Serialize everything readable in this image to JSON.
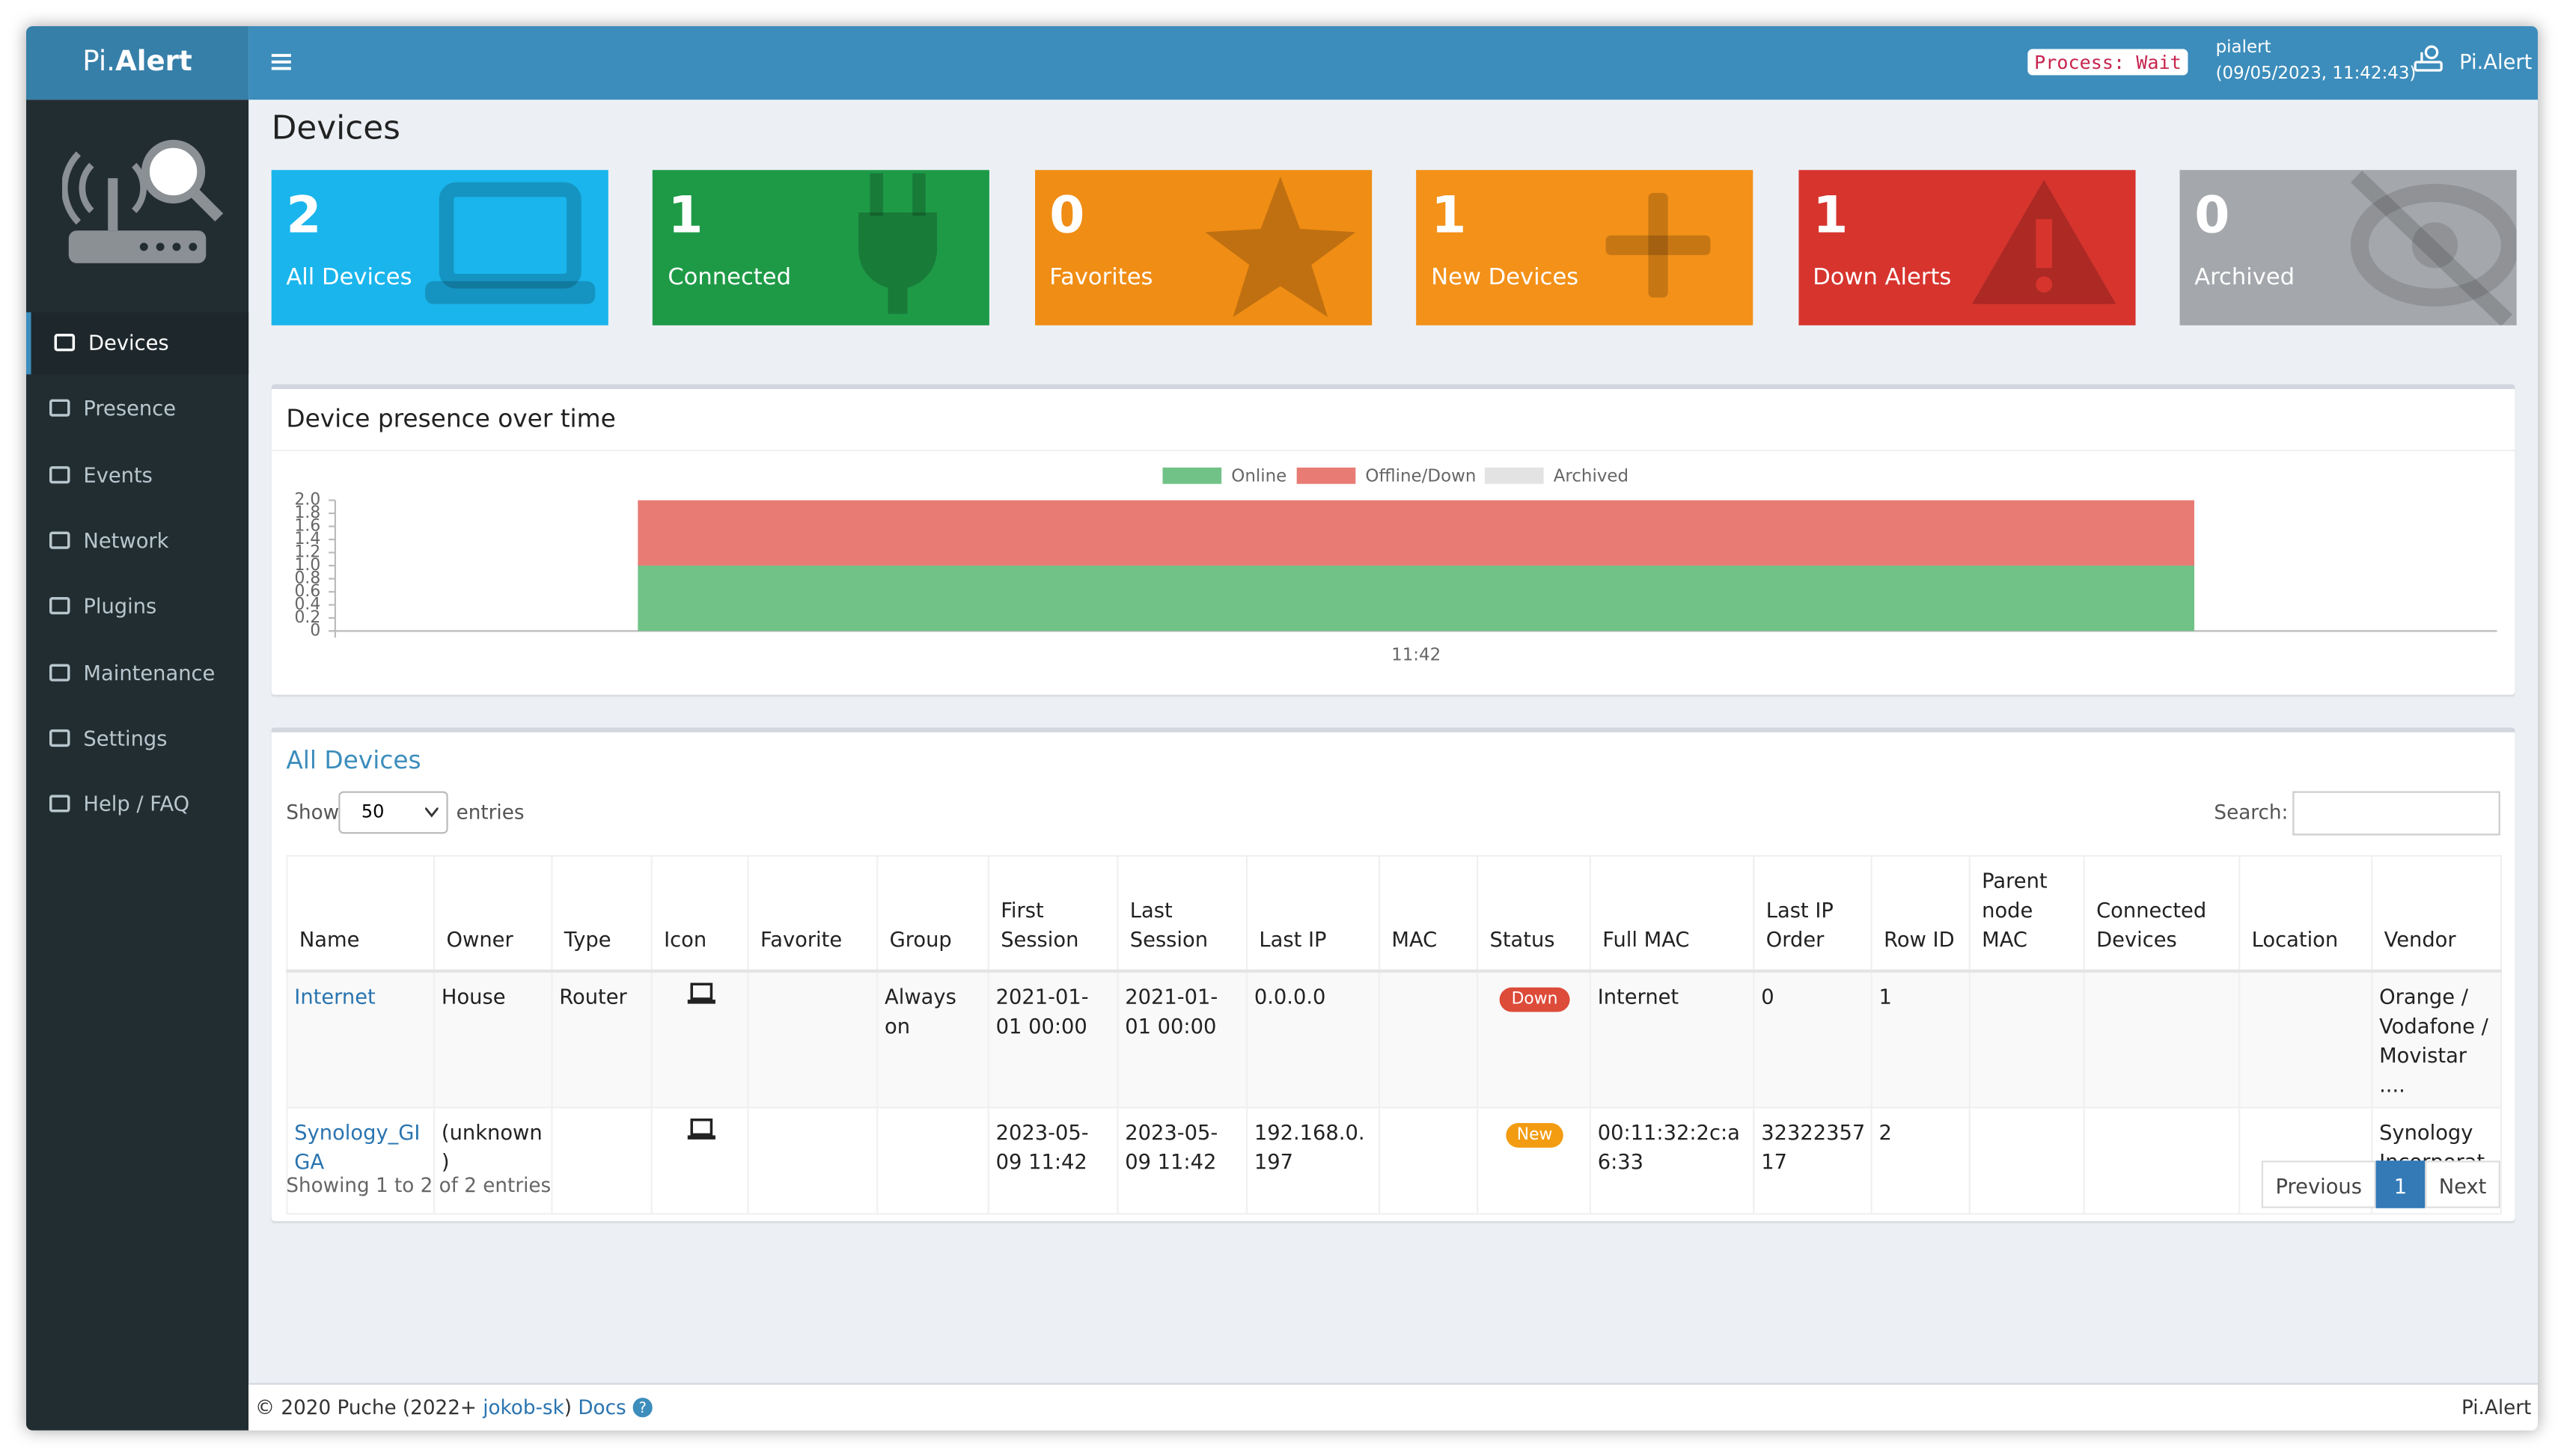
{
  "header": {
    "logo_plain": "Pi.",
    "logo_bold": "Alert",
    "process": "Process: Wait",
    "user": "pialert",
    "datetime": "(09/05/2023, 11:42:43)",
    "app": "Pi.Alert"
  },
  "sidebar": [
    "Devices",
    "Presence",
    "Events",
    "Network",
    "Plugins",
    "Maintenance",
    "Settings",
    "Help / FAQ"
  ],
  "page_title": "Devices",
  "tiles": [
    {
      "value": 2,
      "label": "All Devices",
      "color": "#1ab5ec"
    },
    {
      "value": 1,
      "label": "Connected",
      "color": "#1e9a47"
    },
    {
      "value": 0,
      "label": "Favorites",
      "color": "#f08d14"
    },
    {
      "value": 1,
      "label": "New Devices",
      "color": "#f39119"
    },
    {
      "value": 1,
      "label": "Down Alerts",
      "color": "#d7342e"
    },
    {
      "value": 0,
      "label": "Archived",
      "color": "#a4a7ab"
    }
  ],
  "chart_data": {
    "type": "bar",
    "stacked": true,
    "title": "Device presence over time",
    "categories": [
      "11:42"
    ],
    "series": [
      {
        "name": "Online",
        "color": "#71c287",
        "values": [
          1
        ]
      },
      {
        "name": "Offline/Down",
        "color": "#e87c75",
        "values": [
          1
        ]
      },
      {
        "name": "Archived",
        "color": "#e3e3e3",
        "values": [
          0
        ]
      }
    ],
    "ylim": [
      0,
      2
    ],
    "yticks": [
      0,
      0.2,
      0.4,
      0.6,
      0.8,
      {
        "value": 1,
        "label": "1.0"
      },
      1.2,
      1.4,
      1.6,
      1.8,
      {
        "value": 2,
        "label": "2.0"
      }
    ],
    "legend": "top"
  },
  "table": {
    "title": "All Devices",
    "show": "Show",
    "page_size": "50",
    "entries": "entries",
    "search": "Search:",
    "columns": [
      "Name",
      "Owner",
      "Type",
      "Icon",
      "Favorite",
      "Group",
      "First Session",
      "Last Session",
      "Last IP",
      "MAC",
      "Status",
      "Full MAC",
      "Last IP Order",
      "Row ID",
      "Parent node MAC",
      "Connected Devices",
      "Location",
      "Vendor"
    ],
    "rows": [
      [
        "Internet",
        "House",
        "Router",
        null,
        null,
        "Always on",
        "2021-01-01  00:00",
        "2021-01-01  00:00",
        "0.0.0.0",
        null,
        {
          "text": "Down",
          "color": "#dd4b39"
        },
        "Internet",
        "0",
        "1",
        null,
        null,
        null,
        "Orange / Vodafone / Movistar ...."
      ],
      [
        "Synology_GIGA",
        "(unknown)",
        null,
        null,
        null,
        null,
        "2023-05-09  11:42",
        "2023-05-09  11:42",
        "192.168.0.197",
        null,
        {
          "text": "New",
          "color": "#f39c12"
        },
        "00:11:32:2c:a6:33",
        "3232235717",
        "2",
        null,
        null,
        null,
        "Synology Incorporated"
      ]
    ],
    "info": "Showing 1 to 2 of 2 entries",
    "pagination": [
      "Previous",
      "1",
      "Next"
    ]
  },
  "footer": {
    "copyright": "© 2020 Puche (2022+ ",
    "author": "jokob-sk",
    "close": ") ",
    "docs": "Docs",
    "app": "Pi.Alert"
  }
}
